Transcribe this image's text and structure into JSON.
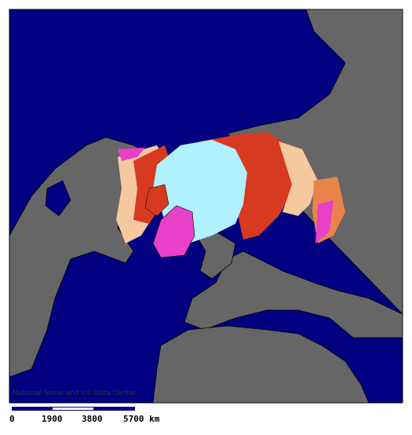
{
  "map": {
    "credit": "National Snow and Ice Data Center",
    "scale_labels": [
      "0",
      "1900",
      "3800",
      "5700 km"
    ]
  }
}
